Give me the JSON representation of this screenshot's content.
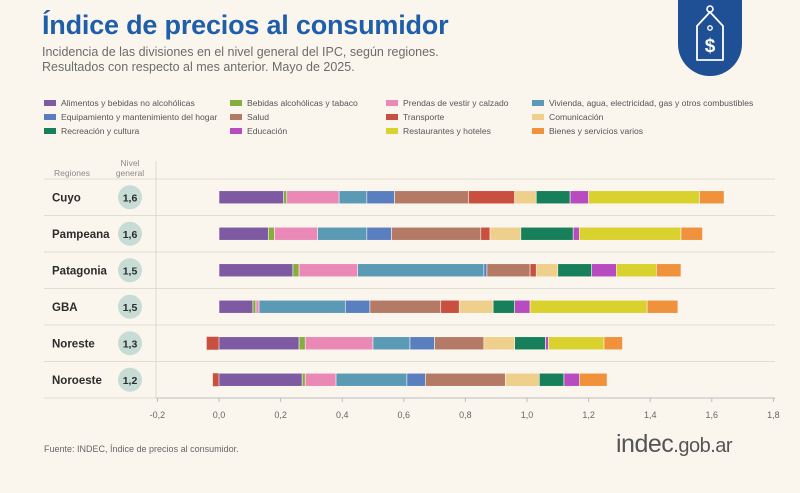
{
  "header": {
    "title": "Índice de precios al consumidor",
    "subtitle_line1": "Incidencia de las divisiones en el nivel general del IPC, según regiones.",
    "subtitle_line2": "Resultados con respecto al mes anterior. Mayo de 2025."
  },
  "columns": {
    "regions": "Regiones",
    "level_line1": "Nivel",
    "level_line2": "general"
  },
  "footer": {
    "source": "Fuente: INDEC, Índice de precios al consumidor.",
    "logo_main": "indec",
    "logo_domain": ".gob.ar"
  },
  "badge": {
    "symbol": "$"
  },
  "colors": {
    "bg": "#faf6ee",
    "title": "#1f5ea8",
    "badge": "#1f4f94",
    "circle": "#c7dcd4",
    "axis": "#bdbdbd"
  },
  "chart_data": {
    "type": "bar",
    "orientation": "horizontal",
    "stacked": true,
    "title": "Índice de precios al consumidor",
    "xlim": [
      -0.2,
      1.8
    ],
    "x_ticks": [
      "-0,2",
      "0,0",
      "0,2",
      "0,4",
      "0,6",
      "0,8",
      "1,0",
      "1,2",
      "1,4",
      "1,6",
      "1,8"
    ],
    "legend_position": "top",
    "categories": [
      "Cuyo",
      "Pampeana",
      "Patagonia",
      "GBA",
      "Noreste",
      "Noroeste"
    ],
    "nivel_general": [
      "1,6",
      "1,6",
      "1,5",
      "1,5",
      "1,3",
      "1,2"
    ],
    "series": [
      {
        "name": "Alimentos y bebidas no alcohólicas",
        "color": "#7d5aa2",
        "values": [
          0.21,
          0.16,
          0.24,
          0.11,
          0.26,
          0.27
        ]
      },
      {
        "name": "Bebidas alcohólicas y tabaco",
        "color": "#86ad3e",
        "values": [
          0.01,
          0.02,
          0.02,
          0.01,
          0.02,
          0.01
        ]
      },
      {
        "name": "Prendas de vestir y calzado",
        "color": "#ea88b6",
        "values": [
          0.17,
          0.14,
          0.19,
          0.01,
          0.22,
          0.1
        ]
      },
      {
        "name": "Vivienda, agua, electricidad, gas y otros combustibles",
        "color": "#5a9ab5",
        "values": [
          0.09,
          0.16,
          0.41,
          0.28,
          0.12,
          0.23
        ]
      },
      {
        "name": "Equipamiento y mantenimiento del hogar",
        "color": "#5a7fc1",
        "values": [
          0.09,
          0.08,
          0.01,
          0.08,
          0.08,
          0.06
        ]
      },
      {
        "name": "Salud",
        "color": "#b47a66",
        "values": [
          0.24,
          0.29,
          0.14,
          0.23,
          0.16,
          0.26
        ]
      },
      {
        "name": "Transporte",
        "color": "#c94f3f",
        "values": [
          0.15,
          0.03,
          0.02,
          0.06,
          0.0,
          0.0
        ]
      },
      {
        "name": "Comunicación",
        "color": "#efcf8c",
        "values": [
          0.07,
          0.1,
          0.07,
          0.11,
          0.1,
          0.11
        ]
      },
      {
        "name": "Recreación y cultura",
        "color": "#17805a",
        "values": [
          0.11,
          0.17,
          0.11,
          0.07,
          0.1,
          0.08
        ]
      },
      {
        "name": "Educación",
        "color": "#b84bbf",
        "values": [
          0.06,
          0.02,
          0.08,
          0.05,
          0.01,
          0.05
        ]
      },
      {
        "name": "Restaurantes y hoteles",
        "color": "#d9d12d",
        "values": [
          0.36,
          0.33,
          0.13,
          0.38,
          0.18,
          0.0
        ]
      },
      {
        "name": "Bienes y servicios varios",
        "color": "#f0923c",
        "values": [
          0.08,
          0.07,
          0.08,
          0.1,
          0.06,
          0.09
        ]
      }
    ],
    "negative_series": [
      {
        "name": "Transporte",
        "color": "#c94f3f",
        "values": [
          0,
          0,
          0,
          0,
          -0.04,
          -0.02
        ]
      }
    ]
  }
}
